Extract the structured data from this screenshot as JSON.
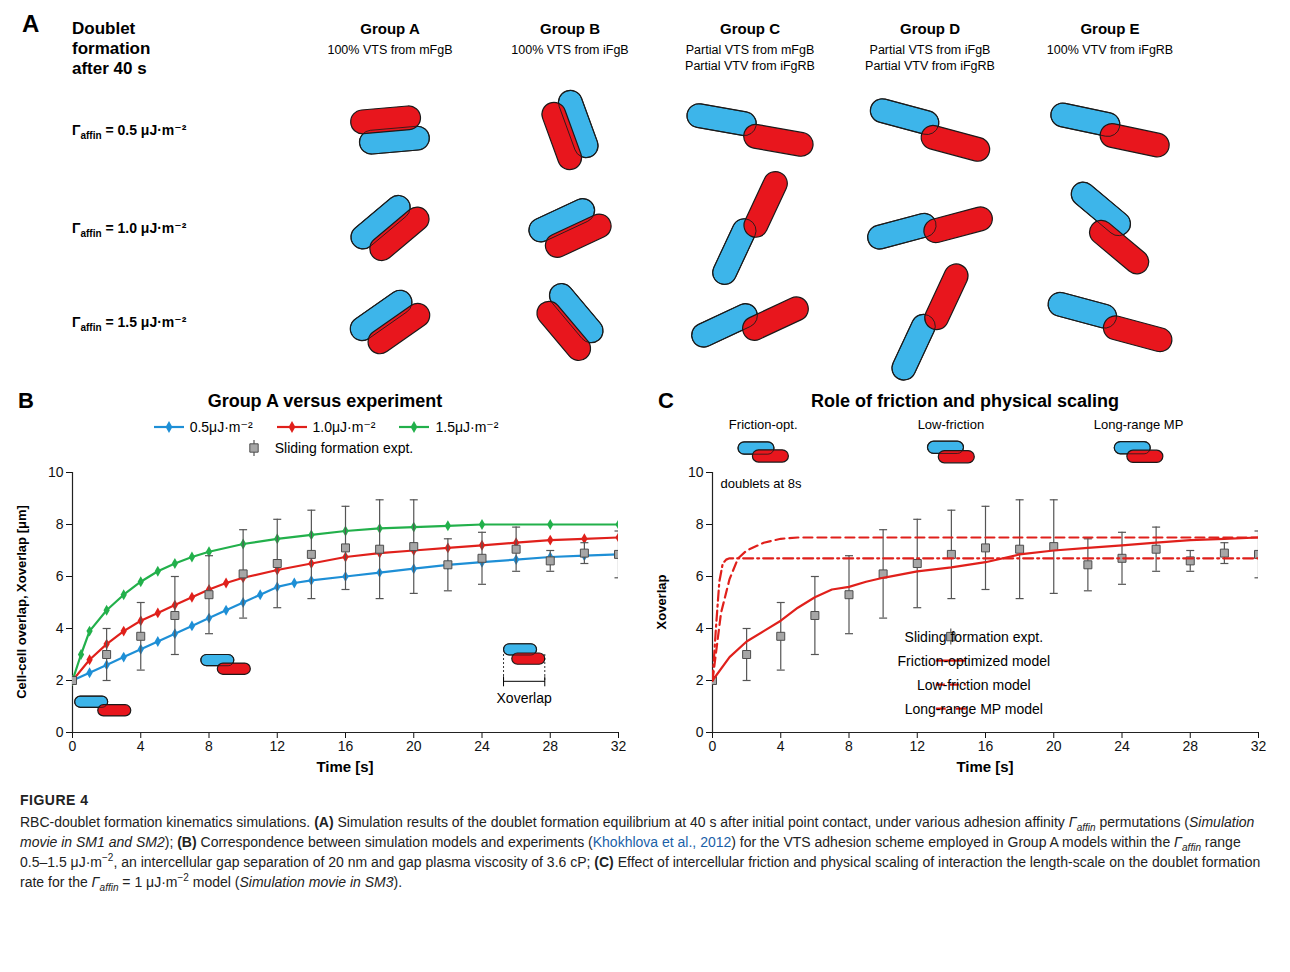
{
  "figure": {
    "panel_a": {
      "panel": "A",
      "heading": "Doublet formation after 40 s",
      "groups": [
        {
          "title": "Group A",
          "subtitle": "100% VTS from mFgB"
        },
        {
          "title": "Group B",
          "subtitle": "100% VTS from iFgB"
        },
        {
          "title": "Group C",
          "subtitle": "Partial VTS from mFgB Partial VTV from iFgRB"
        },
        {
          "title": "Group D",
          "subtitle": "Partial VTS from iFgB Partial VTV from iFgRB"
        },
        {
          "title": "Group E",
          "subtitle": "100% VTV from iFgRB"
        }
      ],
      "rows": [
        {
          "symbol": "Γ",
          "subscript": "affin",
          "text": " = 0.5 μJ·m⁻²"
        },
        {
          "symbol": "Γ",
          "subscript": "affin",
          "text": " = 1.0 μJ·m⁻²"
        },
        {
          "symbol": "Γ",
          "subscript": "affin",
          "text": " = 1.5 μJ·m⁻²"
        }
      ]
    },
    "caption": {
      "label": "FIGURE 4",
      "runs": [
        {
          "text": "RBC-doublet formation kinematics simulations. ",
          "style": "plain"
        },
        {
          "text": "(A)",
          "style": "bold"
        },
        {
          "text": " Simulation results of the doublet formation equilibrium at 40 s after initial point contact, under various adhesion affinity ",
          "style": "plain"
        },
        {
          "text": "Γ",
          "style": "italic"
        },
        {
          "text": "affin",
          "style": "italic-sub"
        },
        {
          "text": " permutations (",
          "style": "plain"
        },
        {
          "text": "Simulation movie in SM1 and SM2",
          "style": "italic"
        },
        {
          "text": "); ",
          "style": "plain"
        },
        {
          "text": "(B)",
          "style": "bold"
        },
        {
          "text": " Correspondence between simulation models and experiments (",
          "style": "plain"
        },
        {
          "text": "Khokhlova et al., 2012",
          "style": "link"
        },
        {
          "text": ") for the VTS adhesion scheme employed in Group A models within the ",
          "style": "plain"
        },
        {
          "text": "Γ",
          "style": "italic"
        },
        {
          "text": "affin",
          "style": "italic-sub"
        },
        {
          "text": " range 0.5–1.5 μJ·m",
          "style": "plain"
        },
        {
          "text": "−2",
          "style": "sup"
        },
        {
          "text": ", an intercellular gap separation of 20 nm and gap plasma viscosity of 3.6 cP; ",
          "style": "plain"
        },
        {
          "text": "(C)",
          "style": "bold"
        },
        {
          "text": " Effect of intercellular friction and physical scaling of interaction the length-scale on the doublet formation rate for the ",
          "style": "plain"
        },
        {
          "text": "Γ",
          "style": "italic"
        },
        {
          "text": "affin",
          "style": "italic-sub"
        },
        {
          "text": " = 1 μJ·m",
          "style": "plain"
        },
        {
          "text": "−2",
          "style": "sup"
        },
        {
          "text": " model (",
          "style": "plain"
        },
        {
          "text": "Simulation movie in SM3",
          "style": "italic"
        },
        {
          "text": ").",
          "style": "plain"
        }
      ]
    }
  },
  "chart_data": [
    {
      "type": "line",
      "panel": "B",
      "title": "Group A versus experiment",
      "xlabel": "Time [s]",
      "ylabel": "Cell-cell overlap, Xoverlap [μm]",
      "xlim": [
        0,
        32
      ],
      "xticks": [
        0,
        4,
        8,
        12,
        16,
        20,
        24,
        28,
        32
      ],
      "ylim": [
        0,
        10
      ],
      "yticks": [
        0,
        2,
        4,
        6,
        8,
        10
      ],
      "grid": false,
      "legend": "top",
      "annotations": [
        "Xoverlap"
      ],
      "series": [
        {
          "name": "0.5μJ·m⁻²",
          "color": "#1e8fd6",
          "marker": "diamond",
          "line_style": "solid",
          "x": [
            0,
            1,
            2,
            3,
            4,
            5,
            6,
            7,
            8,
            9,
            10,
            11,
            12,
            13,
            14,
            16,
            18,
            20,
            22,
            24,
            26,
            28,
            30,
            32
          ],
          "values": [
            2.0,
            2.3,
            2.6,
            2.9,
            3.2,
            3.5,
            3.8,
            4.1,
            4.4,
            4.7,
            5.0,
            5.3,
            5.6,
            5.75,
            5.85,
            6.0,
            6.15,
            6.3,
            6.45,
            6.55,
            6.65,
            6.75,
            6.8,
            6.85
          ]
        },
        {
          "name": "1.0μJ·m⁻²",
          "color": "#e0201b",
          "marker": "diamond",
          "line_style": "solid",
          "x": [
            0,
            1,
            2,
            3,
            4,
            5,
            6,
            7,
            8,
            9,
            10,
            12,
            14,
            16,
            18,
            20,
            22,
            24,
            26,
            28,
            30,
            32
          ],
          "values": [
            2.0,
            2.8,
            3.4,
            3.9,
            4.3,
            4.6,
            4.9,
            5.2,
            5.5,
            5.75,
            5.95,
            6.25,
            6.5,
            6.75,
            6.9,
            7.0,
            7.1,
            7.2,
            7.3,
            7.4,
            7.45,
            7.5
          ]
        },
        {
          "name": "1.5μJ·m⁻²",
          "color": "#22b04b",
          "marker": "diamond",
          "line_style": "solid",
          "x": [
            0,
            0.5,
            1,
            2,
            3,
            4,
            5,
            6,
            7,
            8,
            10,
            12,
            14,
            16,
            18,
            20,
            22,
            24,
            28,
            32
          ],
          "values": [
            2.0,
            3.0,
            3.9,
            4.7,
            5.3,
            5.8,
            6.2,
            6.5,
            6.75,
            6.95,
            7.25,
            7.45,
            7.6,
            7.75,
            7.85,
            7.9,
            7.95,
            8.0,
            8.0,
            8.0
          ]
        },
        {
          "name": "Sliding formation expt.",
          "type": "scatter",
          "color": "#a6a6a6",
          "marker": "square",
          "x": [
            0,
            2,
            4,
            6,
            8,
            10,
            12,
            14,
            16,
            18,
            20,
            22,
            24,
            26,
            28,
            30,
            32
          ],
          "values": [
            2.0,
            3.0,
            3.7,
            4.5,
            5.3,
            6.1,
            6.5,
            6.85,
            7.1,
            7.05,
            7.15,
            6.45,
            6.7,
            7.05,
            6.6,
            6.9,
            6.85
          ],
          "errors": [
            0,
            1.0,
            1.3,
            1.5,
            1.5,
            1.7,
            1.7,
            1.7,
            1.6,
            1.9,
            1.8,
            1.0,
            1.0,
            0.85,
            0.4,
            0.4,
            0.9
          ]
        }
      ]
    },
    {
      "type": "line",
      "panel": "C",
      "title": "Role of friction and physical scaling",
      "xlabel": "Time [s]",
      "ylabel": "Xoverlap",
      "xlim": [
        0,
        32
      ],
      "xticks": [
        0,
        4,
        8,
        12,
        16,
        20,
        24,
        28,
        32
      ],
      "ylim": [
        0,
        10
      ],
      "yticks": [
        0,
        2,
        4,
        6,
        8,
        10
      ],
      "grid": false,
      "legend": "lower right",
      "annotations": [
        "Friction-opt.",
        "Low-friction",
        "Long-range MP",
        "doublets at 8s"
      ],
      "series": [
        {
          "name": "Friction-optimized model",
          "color": "#e0201b",
          "marker": "none",
          "line_style": "solid",
          "x": [
            0,
            1,
            2,
            3,
            4,
            5,
            6,
            7,
            8,
            9,
            10,
            12,
            14,
            16,
            18,
            20,
            22,
            24,
            26,
            28,
            30,
            32
          ],
          "values": [
            2.0,
            2.9,
            3.5,
            3.9,
            4.3,
            4.8,
            5.2,
            5.5,
            5.6,
            5.8,
            5.95,
            6.2,
            6.35,
            6.55,
            6.85,
            7.0,
            7.1,
            7.2,
            7.3,
            7.4,
            7.45,
            7.5
          ]
        },
        {
          "name": "Low-friction model",
          "color": "#e0201b",
          "marker": "none",
          "line_style": "dashed",
          "x": [
            0,
            0.5,
            1,
            1.5,
            2,
            3,
            4,
            5,
            32
          ],
          "values": [
            2.0,
            4.6,
            5.9,
            6.7,
            7.0,
            7.3,
            7.45,
            7.5,
            7.5
          ]
        },
        {
          "name": "Long-range MP model",
          "color": "#e0201b",
          "marker": "none",
          "line_style": "dashdot",
          "x": [
            0,
            0.2,
            0.4,
            0.6,
            0.8,
            1,
            32
          ],
          "values": [
            2.0,
            4.0,
            5.8,
            6.5,
            6.65,
            6.7,
            6.7
          ]
        },
        {
          "name": "Sliding formation expt.",
          "type": "scatter",
          "color": "#a6a6a6",
          "marker": "square",
          "x": [
            0,
            2,
            4,
            6,
            8,
            10,
            12,
            14,
            16,
            18,
            20,
            22,
            24,
            26,
            28,
            30,
            32
          ],
          "values": [
            2.0,
            3.0,
            3.7,
            4.5,
            5.3,
            6.1,
            6.5,
            6.85,
            7.1,
            7.05,
            7.15,
            6.45,
            6.7,
            7.05,
            6.6,
            6.9,
            6.85
          ],
          "errors": [
            0,
            1.0,
            1.3,
            1.5,
            1.5,
            1.7,
            1.7,
            1.7,
            1.6,
            1.9,
            1.8,
            1.0,
            1.0,
            0.85,
            0.4,
            0.4,
            0.9
          ]
        }
      ]
    }
  ]
}
